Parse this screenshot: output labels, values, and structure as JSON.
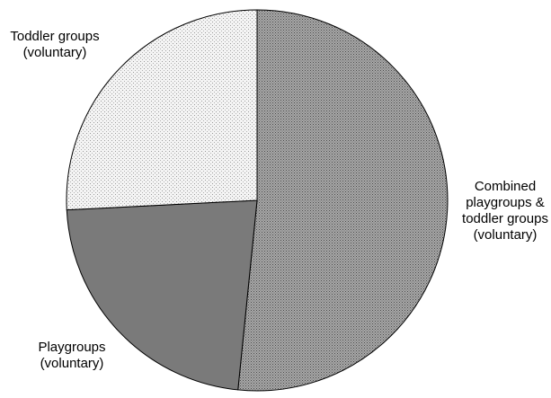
{
  "chart_data": {
    "type": "pie",
    "title": "",
    "slices": [
      {
        "label_lines": [
          "Combined",
          "playgroups &",
          "toddler groups",
          "(voluntary)"
        ],
        "value": 51.6,
        "color": "#8c8c8c",
        "pattern": "dense-dots"
      },
      {
        "label_lines": [
          "Playgroups",
          "(voluntary)"
        ],
        "value": 22.6,
        "color": "#7a7a7a",
        "pattern": "solid"
      },
      {
        "label_lines": [
          "Toddler groups",
          "(voluntary)"
        ],
        "value": 25.8,
        "color": "#eeeeee",
        "pattern": "sparse-dots"
      }
    ],
    "start_angle_deg": 0,
    "direction": "clockwise",
    "value_unit": "%",
    "legend": "none"
  }
}
